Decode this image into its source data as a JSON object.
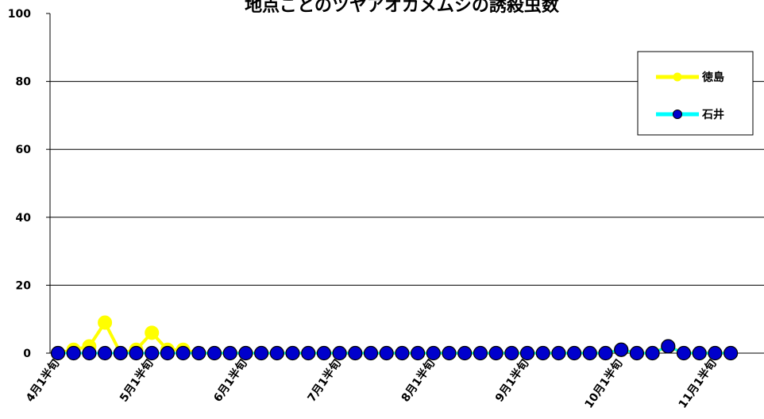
{
  "chart_data": {
    "type": "line",
    "title": "地点ごとのツヤアオカメムシの誘殺虫数",
    "xlabel": "",
    "ylabel": "",
    "ylim": [
      0,
      100
    ],
    "yticks": [
      0,
      20,
      40,
      60,
      80,
      100
    ],
    "x_tick_labels": [
      "4月1半旬",
      "5月1半旬",
      "6月1半旬",
      "7月1半旬",
      "8月1半旬",
      "9月1半旬",
      "10月1半旬",
      "11月1半旬"
    ],
    "x_tick_label_indices": [
      0,
      6,
      12,
      18,
      24,
      30,
      36,
      42
    ],
    "legend_position": "top-right",
    "grid": "horizontal",
    "series": [
      {
        "name": "徳島",
        "color": "#ffff00",
        "marker_fill": "#ffff00",
        "values": [
          0,
          1,
          2,
          9,
          0,
          1,
          6,
          1,
          1,
          0,
          0,
          0,
          0,
          0,
          0,
          0,
          0,
          0,
          0,
          0,
          0,
          0,
          0,
          0,
          0,
          0,
          0,
          0,
          0,
          0,
          0,
          0,
          0,
          0,
          0,
          0,
          1,
          0,
          0,
          2,
          0,
          0,
          0,
          0
        ]
      },
      {
        "name": "石井",
        "color": "#00ffff",
        "marker_fill": "#0000cc",
        "values": [
          0,
          0,
          0,
          0,
          0,
          0,
          0,
          0,
          0,
          0,
          0,
          0,
          0,
          0,
          0,
          0,
          0,
          0,
          0,
          0,
          0,
          0,
          0,
          0,
          0,
          0,
          0,
          0,
          0,
          0,
          0,
          0,
          0,
          0,
          0,
          0,
          1,
          0,
          0,
          2,
          0,
          0,
          0,
          0
        ]
      }
    ]
  }
}
